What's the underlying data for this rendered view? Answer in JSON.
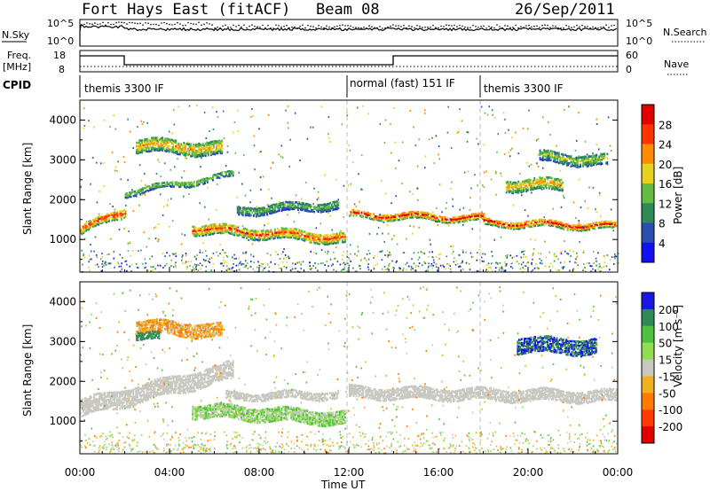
{
  "header": {
    "station": "Fort Hays East (fitACF)",
    "beam": "Beam 08",
    "date": "26/Sep/2011"
  },
  "strips": {
    "nsky_label": "N.Sky",
    "nsky_ticks": [
      "10^5",
      "10^0"
    ],
    "nsearch_label": "N.Search",
    "nsearch_ticks": [
      "10^5",
      "10^0"
    ],
    "freq_label": "Freq.",
    "freq_unit": "[MHz]",
    "freq_ticks": [
      "18",
      "8"
    ],
    "nave_label": "Nave",
    "nave_ticks": [
      "60",
      "0"
    ],
    "cpid_label": "CPID",
    "cpid_segments": [
      {
        "label": "themis 3300 IF",
        "start_h": 0,
        "end_h": 12
      },
      {
        "label": "normal (fast) 151 IF",
        "start_h": 12,
        "end_h": 18
      },
      {
        "label": "themis 3300 IF",
        "start_h": 18,
        "end_h": 24
      }
    ]
  },
  "chart_data": [
    {
      "type": "heatmap",
      "name": "power",
      "ylabel": "Slant Range [km]",
      "xlim": [
        0,
        24
      ],
      "ylim": [
        180,
        4500
      ],
      "y_ticks": [
        "1000",
        "2000",
        "3000",
        "4000"
      ],
      "colorbar_label": "Power [dB]",
      "colorbar_ticks": [
        "28",
        "24",
        "20",
        "16",
        "12",
        "8",
        "4"
      ],
      "colorbar_colors": [
        "#1010f0",
        "#2a4fb0",
        "#2e8b57",
        "#66bb44",
        "#e6d21e",
        "#ff8c00",
        "#ff3300",
        "#e00000"
      ],
      "echo_bands": [
        {
          "start_h": 0.0,
          "end_h": 2.0,
          "range_start_km": 1250,
          "range_end_km": 1750,
          "width_km": 220,
          "level": 24
        },
        {
          "start_h": 2.0,
          "end_h": 6.8,
          "range_start_km": 2200,
          "range_end_km": 2650,
          "width_km": 150,
          "level": 14
        },
        {
          "start_h": 2.5,
          "end_h": 6.3,
          "range_start_km": 3400,
          "range_end_km": 3300,
          "width_km": 350,
          "level": 18
        },
        {
          "start_h": 5.0,
          "end_h": 11.8,
          "range_start_km": 1300,
          "range_end_km": 1050,
          "width_km": 260,
          "level": 22
        },
        {
          "start_h": 7.0,
          "end_h": 11.5,
          "range_start_km": 1750,
          "range_end_km": 1900,
          "width_km": 220,
          "level": 12
        },
        {
          "start_h": 12.0,
          "end_h": 18.0,
          "range_start_km": 1650,
          "range_end_km": 1550,
          "width_km": 170,
          "level": 25
        },
        {
          "start_h": 18.0,
          "end_h": 23.9,
          "range_start_km": 1450,
          "range_end_km": 1350,
          "width_km": 170,
          "level": 25
        },
        {
          "start_h": 19.0,
          "end_h": 21.5,
          "range_start_km": 2400,
          "range_end_km": 2400,
          "width_km": 300,
          "level": 19
        },
        {
          "start_h": 20.5,
          "end_h": 23.5,
          "range_start_km": 3100,
          "range_end_km": 3000,
          "width_km": 280,
          "level": 14
        }
      ]
    },
    {
      "type": "heatmap",
      "name": "velocity",
      "ylabel": "Slant Range [km]",
      "xlabel": "Time UT",
      "xlim": [
        0,
        24
      ],
      "ylim": [
        180,
        4500
      ],
      "x_ticks": [
        "00:00",
        "04:00",
        "08:00",
        "12:00",
        "16:00",
        "20:00",
        "00:00"
      ],
      "y_ticks": [
        "1000",
        "2000",
        "3000",
        "4000"
      ],
      "colorbar_label": "Velocity [m s⁻¹]",
      "colorbar_ticks": [
        "200",
        "100",
        "50",
        "15",
        "-15",
        "-50",
        "-100",
        "-200"
      ],
      "colorbar_colors": [
        "#1818e0",
        "#2e8b57",
        "#50c040",
        "#90dd50",
        "#c8c8c0",
        "#f0b020",
        "#ff7a00",
        "#ff3a00",
        "#e00000"
      ],
      "echo_bands": [
        {
          "start_h": 0.0,
          "end_h": 6.8,
          "range_start_km": 1350,
          "range_end_km": 2300,
          "width_km": 450,
          "level": 0
        },
        {
          "start_h": 2.5,
          "end_h": 6.3,
          "range_start_km": 3400,
          "range_end_km": 3300,
          "width_km": 350,
          "level": -40
        },
        {
          "start_h": 2.5,
          "end_h": 3.5,
          "range_start_km": 3200,
          "range_end_km": 3150,
          "width_km": 200,
          "level": 150
        },
        {
          "start_h": 5.0,
          "end_h": 11.8,
          "range_start_km": 1300,
          "range_end_km": 1100,
          "width_km": 350,
          "level": 30
        },
        {
          "start_h": 6.5,
          "end_h": 11.5,
          "range_start_km": 1650,
          "range_end_km": 1700,
          "width_km": 200,
          "level": 0
        },
        {
          "start_h": 12.0,
          "end_h": 23.9,
          "range_start_km": 1750,
          "range_end_km": 1650,
          "width_km": 300,
          "level": 0
        },
        {
          "start_h": 19.5,
          "end_h": 23.0,
          "range_start_km": 2950,
          "range_end_km": 2900,
          "width_km": 400,
          "level": 200
        }
      ]
    }
  ]
}
